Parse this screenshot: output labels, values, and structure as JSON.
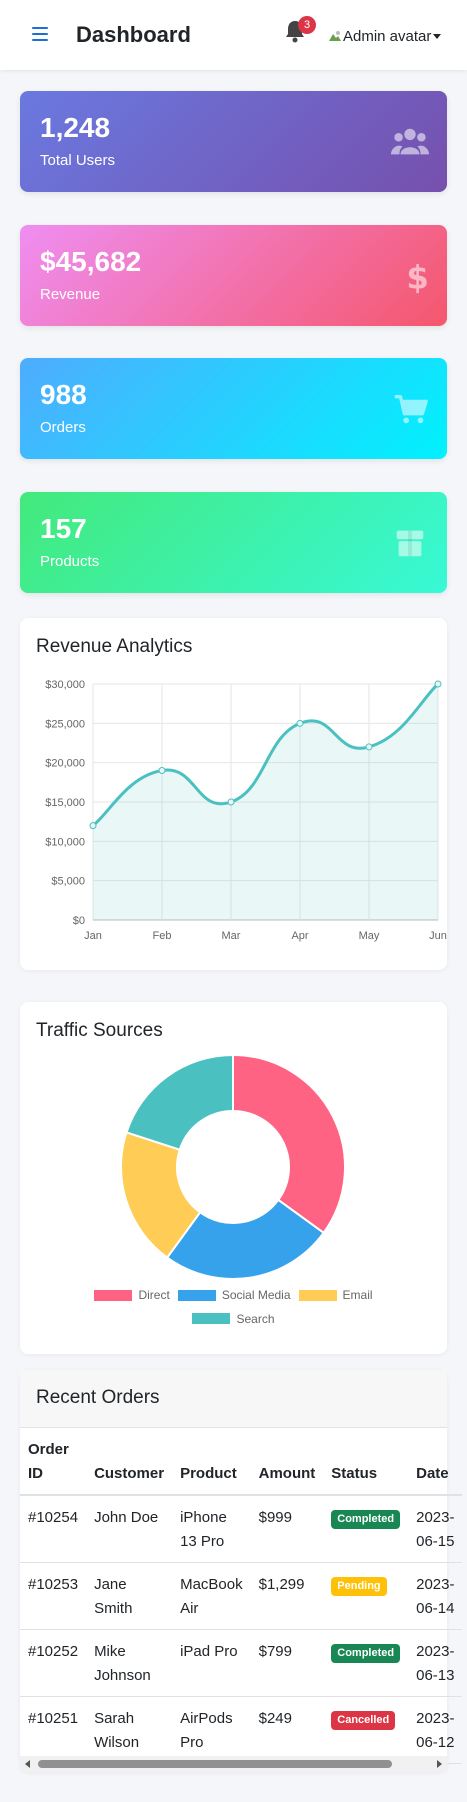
{
  "header": {
    "title": "Dashboard",
    "notification_count": "3",
    "avatar_alt": "Admin avatar"
  },
  "stats": [
    {
      "value": "1,248",
      "label": "Total Users",
      "icon": "users-icon"
    },
    {
      "value": "$45,682",
      "label": "Revenue",
      "icon": "dollar-icon"
    },
    {
      "value": "988",
      "label": "Orders",
      "icon": "cart-icon"
    },
    {
      "value": "157",
      "label": "Products",
      "icon": "box-icon"
    }
  ],
  "colors": {
    "users_gradient": [
      "#6a79e0",
      "#7650ad"
    ],
    "revenue_gradient": [
      "#ef8ef2",
      "#f5576c"
    ],
    "orders_gradient": [
      "#4facfe",
      "#00f2fe"
    ],
    "products_gradient": [
      "#43e97b",
      "#38f9d7"
    ],
    "line": "#4bc0c0",
    "completed": "#198754",
    "pending": "#ffc107",
    "cancelled": "#dc3545"
  },
  "revenue_chart": {
    "title": "Revenue Analytics"
  },
  "traffic_chart": {
    "title": "Traffic Sources"
  },
  "chart_data": [
    {
      "type": "area",
      "title": "Revenue Analytics",
      "categories": [
        "Jan",
        "Feb",
        "Mar",
        "Apr",
        "May",
        "Jun"
      ],
      "series": [
        {
          "values": [
            12000,
            19000,
            15000,
            25000,
            22000,
            30000
          ]
        }
      ],
      "ylim": [
        0,
        30000
      ],
      "yticks": [
        "$0",
        "$5,000",
        "$10,000",
        "$15,000",
        "$20,000",
        "$25,000",
        "$30,000"
      ],
      "grid": true
    },
    {
      "type": "pie",
      "title": "Traffic Sources",
      "labels": [
        "Direct",
        "Social Media",
        "Email",
        "Search"
      ],
      "values": [
        35,
        25,
        20,
        20
      ],
      "colors": [
        "#ff6384",
        "#36a2eb",
        "#ffcd56",
        "#4bc0c0"
      ],
      "legend": "bottom"
    }
  ],
  "orders": {
    "title": "Recent Orders",
    "columns": [
      "Order ID",
      "Customer",
      "Product",
      "Amount",
      "Status",
      "Date"
    ],
    "rows": [
      {
        "id": "#10254",
        "customer": "John Doe",
        "product": "iPhone 13 Pro",
        "amount": "$999",
        "status": "Completed",
        "date": "2023-06-15"
      },
      {
        "id": "#10253",
        "customer": "Jane Smith",
        "product": "MacBook Air",
        "amount": "$1,299",
        "status": "Pending",
        "date": "2023-06-14"
      },
      {
        "id": "#10252",
        "customer": "Mike Johnson",
        "product": "iPad Pro",
        "amount": "$799",
        "status": "Completed",
        "date": "2023-06-13"
      },
      {
        "id": "#10251",
        "customer": "Sarah Wilson",
        "product": "AirPods Pro",
        "amount": "$249",
        "status": "Cancelled",
        "date": "2023-06-12"
      }
    ]
  }
}
